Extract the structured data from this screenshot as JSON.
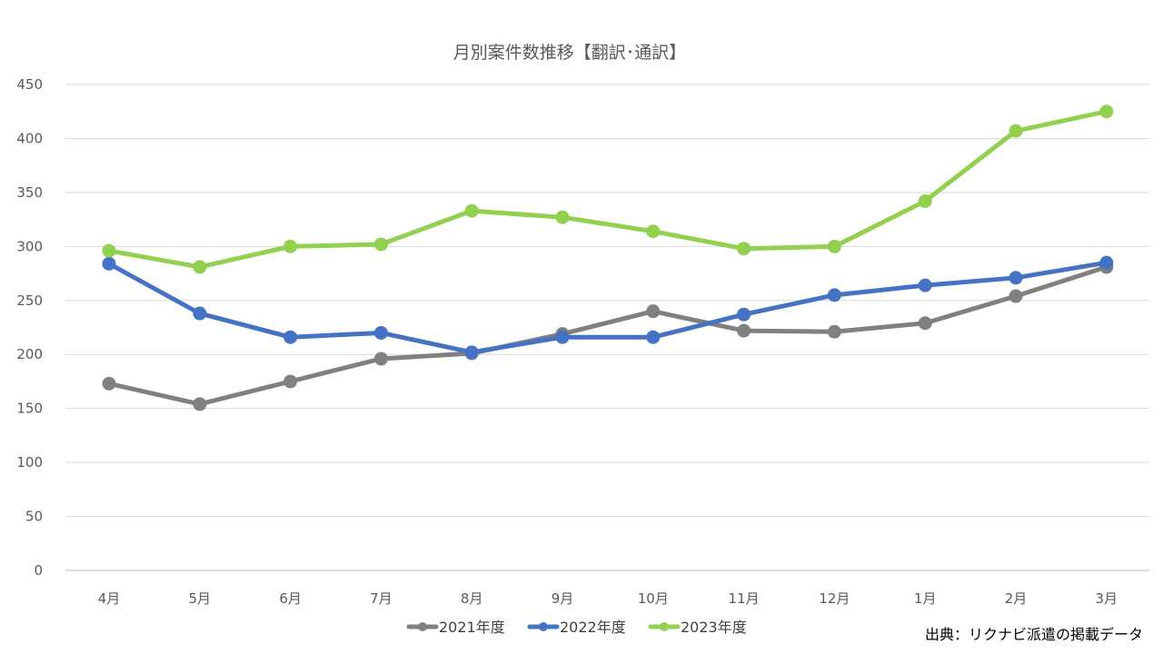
{
  "chart_data": {
    "type": "line",
    "title": "月別案件数推移【翻訳･通訳】",
    "xlabel": "",
    "ylabel": "",
    "categories": [
      "4月",
      "5月",
      "6月",
      "7月",
      "8月",
      "9月",
      "10月",
      "11月",
      "12月",
      "1月",
      "2月",
      "3月"
    ],
    "ylim": [
      0,
      450
    ],
    "yticks": [
      0,
      50,
      100,
      150,
      200,
      250,
      300,
      350,
      400,
      450
    ],
    "grid": true,
    "legend_position": "bottom",
    "series": [
      {
        "name": "2021年度",
        "color": "#808080",
        "values": [
          173,
          154,
          175,
          196,
          201,
          219,
          240,
          222,
          221,
          229,
          254,
          281
        ]
      },
      {
        "name": "2022年度",
        "color": "#4472C4",
        "values": [
          284,
          238,
          216,
          220,
          202,
          216,
          216,
          237,
          255,
          264,
          271,
          285
        ]
      },
      {
        "name": "2023年度",
        "color": "#92D050",
        "values": [
          296,
          281,
          300,
          302,
          333,
          327,
          314,
          298,
          300,
          342,
          407,
          425
        ]
      }
    ],
    "source_note": "出典：リクナビ派遣の掲載データ"
  }
}
